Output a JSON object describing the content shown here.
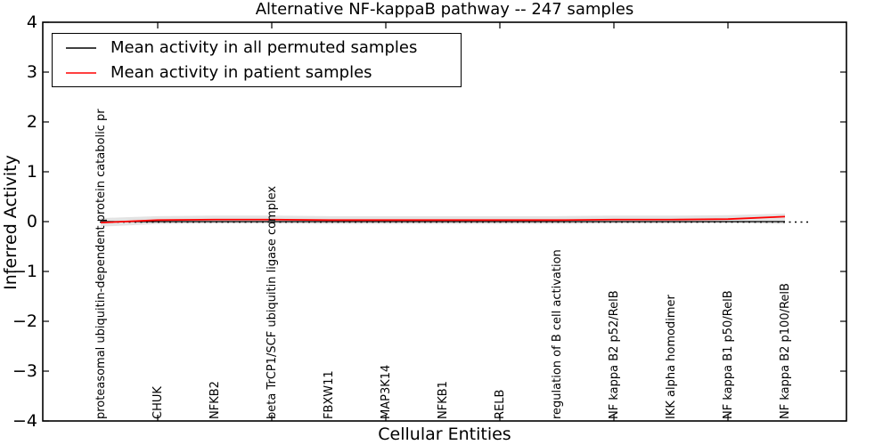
{
  "title": "Alternative NF-kappaB pathway -- 247 samples",
  "axes": {
    "x_label": "Cellular Entities",
    "y_label": "Inferred Activity",
    "y_tick_labels": [
      "4",
      "3",
      "2",
      "1",
      "0",
      "−1",
      "−2",
      "−3",
      "−4"
    ]
  },
  "legend": {
    "items": [
      {
        "label": "Mean activity in all permuted samples",
        "color": "#000000"
      },
      {
        "label": "Mean activity in patient samples",
        "color": "#ff0000"
      }
    ]
  },
  "chart_data": {
    "type": "line",
    "title": "Alternative NF-kappaB pathway -- 247 samples",
    "xlabel": "Cellular Entities",
    "ylabel": "Inferred Activity",
    "ylim": [
      -4,
      4
    ],
    "grid": false,
    "legend_position": "upper left",
    "categories": [
      "proteasomal ubiquitin-dependent protein catabolic pr",
      "CHUK",
      "NFKB2",
      "beta TrCP1/SCF ubiquitin ligase complex",
      "FBXW11",
      "MAP3K14",
      "NFKB1",
      "RELB",
      "regulation of B cell activation",
      "NF kappa B2 p52/RelB",
      "IKK alpha homodimer",
      "NF kappa B1 p50/RelB",
      "NF kappa B2 p100/RelB"
    ],
    "series": [
      {
        "name": "Mean activity in all permuted samples",
        "color": "#000000",
        "style": "solid",
        "values": [
          0.0,
          0.0,
          0.0,
          0.0,
          0.0,
          0.0,
          0.0,
          0.0,
          0.0,
          0.0,
          0.0,
          0.0,
          0.0
        ]
      },
      {
        "name": "Mean activity in patient samples",
        "color": "#ff0000",
        "style": "solid",
        "values": [
          -0.02,
          0.03,
          0.04,
          0.04,
          0.03,
          0.03,
          0.03,
          0.03,
          0.03,
          0.04,
          0.04,
          0.05,
          0.1
        ]
      }
    ],
    "band": {
      "color": "#c8c8c8",
      "upper": [
        0.07,
        0.11,
        0.12,
        0.12,
        0.11,
        0.11,
        0.11,
        0.11,
        0.11,
        0.12,
        0.12,
        0.13,
        0.16
      ],
      "lower": [
        -0.1,
        -0.05,
        -0.04,
        -0.04,
        -0.05,
        -0.05,
        -0.05,
        -0.05,
        -0.05,
        -0.04,
        -0.04,
        -0.03,
        -0.05
      ]
    },
    "zero_line": {
      "y": 0,
      "style": "dotted",
      "color": "#000000"
    }
  }
}
